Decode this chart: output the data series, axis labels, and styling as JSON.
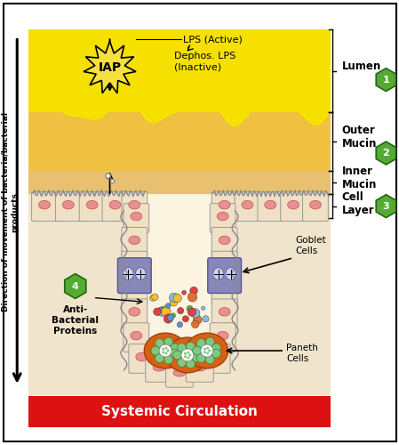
{
  "bg_color": "#FFFFFF",
  "border_color": "#000000",
  "lumen_color": "#F5E000",
  "outer_mucin_color": "#F0C860",
  "inner_mucin_color": "#E8B840",
  "intestine_bg": "#F5EAD0",
  "crypt_interior": "#FFF8E8",
  "cell_body_color": "#F5E8D5",
  "cell_border_color": "#AAAAAA",
  "nucleus_color": "#E89090",
  "nucleus_border": "#CC6060",
  "goblet_color": "#9090C0",
  "goblet_border": "#6060A0",
  "paneth_color": "#E07020",
  "paneth_border": "#B05010",
  "granule_color": "#90D090",
  "iap_star_color": "#F5E040",
  "hex_green": "#5AAD3C",
  "hex_border": "#3A7D1C",
  "systemic_bar_color": "#DD1111",
  "systemic_text_color": "#FFFFFF",
  "arrow_color": "#000000",
  "title": "Systemic Circulation",
  "left_label_line1": "Direction of movement of bacteria/bacterial",
  "left_label_line2": "products",
  "label_lumen": "Lumen",
  "label_outer_mucin": "Outer\nMucin",
  "label_inner_mucin": "Inner\nMucin",
  "label_cell_layer": "Cell\nLayer",
  "label_goblet": "Goblet\nCells",
  "label_paneth": "Paneth\nCells",
  "label_anti": "Anti-\nBacterial\nProteins",
  "label_lps_active": "LPS (Active)",
  "label_dephos": "Dephos. LPS\n(Inactive)",
  "label_iap": "IAP"
}
